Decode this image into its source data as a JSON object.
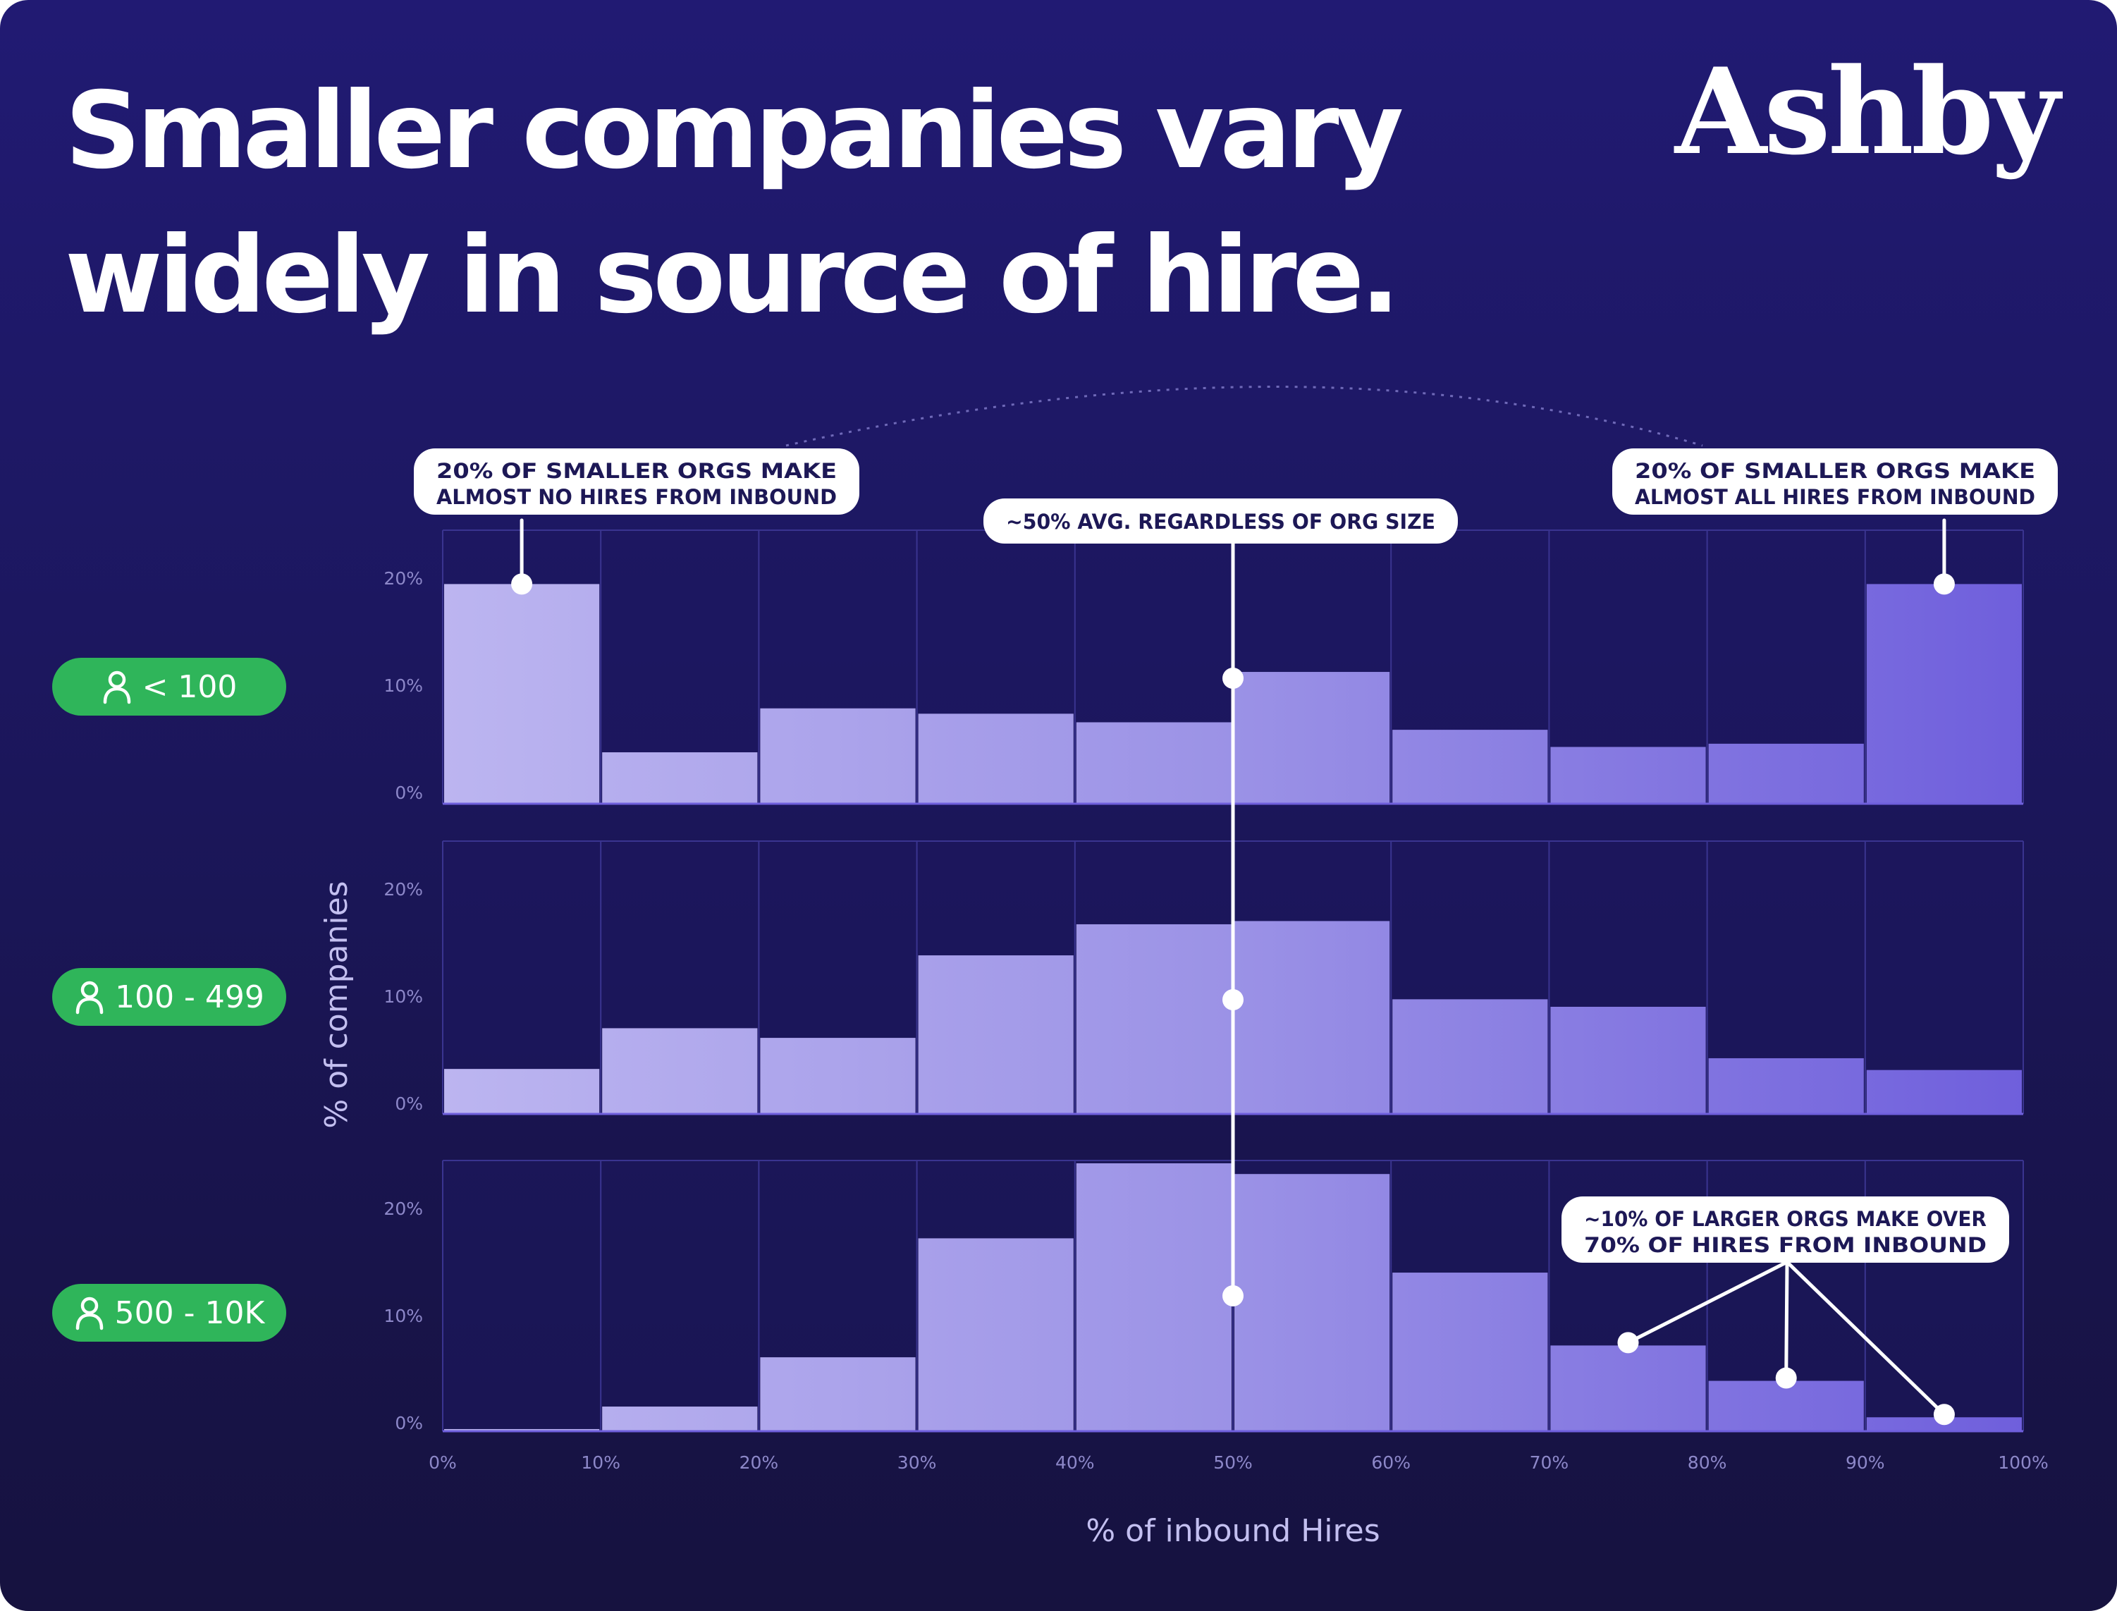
{
  "page": {
    "title_line1": "Smaller companies vary",
    "title_line2": "widely in source of hire.",
    "logo_text": "Ashby"
  },
  "colors": {
    "background_top": "#211a73",
    "background_bottom": "#16123f",
    "bar_light": "#bcb5f0",
    "bar_dark": "#6f5fdc",
    "pill_green": "#2fb55a",
    "callout_bg": "#ffffff",
    "callout_text": "#1d1856"
  },
  "chart_data": {
    "type": "bar",
    "subtype": "histogram-small-multiples",
    "xlabel": "% of inbound Hires",
    "ylabel": "% of companies",
    "x_ticks": [
      "0%",
      "10%",
      "20%",
      "30%",
      "40%",
      "50%",
      "60%",
      "70%",
      "80%",
      "90%",
      "100%"
    ],
    "x_range": [
      0,
      100
    ],
    "bin_width": 10,
    "y_ticks": [
      "0%",
      "10%",
      "20%"
    ],
    "ylim": [
      0,
      25
    ],
    "panels": [
      {
        "name": "< 100",
        "bins": [
          "0-10%",
          "10-20%",
          "20-30%",
          "30-40%",
          "40-50%",
          "50-60%",
          "60-70%",
          "70-80%",
          "80-90%",
          "90-100%"
        ],
        "values": [
          20.5,
          4.8,
          8.9,
          8.4,
          7.6,
          12.3,
          6.9,
          5.3,
          5.6,
          20.5
        ]
      },
      {
        "name": "100 - 499",
        "bins": [
          "0-10%",
          "10-20%",
          "20-30%",
          "30-40%",
          "40-50%",
          "50-60%",
          "60-70%",
          "70-80%",
          "80-90%",
          "90-100%"
        ],
        "values": [
          4.2,
          8.0,
          7.1,
          14.8,
          17.7,
          18.0,
          10.7,
          10.0,
          5.2,
          4.1
        ]
      },
      {
        "name": "500 - 10K",
        "bins": [
          "0-10%",
          "10-20%",
          "20-30%",
          "30-40%",
          "40-50%",
          "50-60%",
          "60-70%",
          "70-80%",
          "80-90%",
          "90-100%"
        ],
        "values": [
          0.2,
          2.3,
          6.9,
          18.0,
          25.0,
          24.0,
          14.8,
          8.0,
          4.7,
          1.3
        ]
      }
    ],
    "annotations": [
      {
        "line1": "20% OF SMALLER ORGS MAKE",
        "line2": "ALMOST NO HIRES FROM INBOUND"
      },
      {
        "line1": "~50% AVG. REGARDLESS OF ORG SIZE",
        "line2": ""
      },
      {
        "line1": "20% OF SMALLER ORGS MAKE",
        "line2": "ALMOST ALL HIRES FROM INBOUND"
      },
      {
        "line1": "~10% OF LARGER ORGS MAKE OVER",
        "line2": "70% OF HIRES FROM INBOUND"
      }
    ]
  }
}
